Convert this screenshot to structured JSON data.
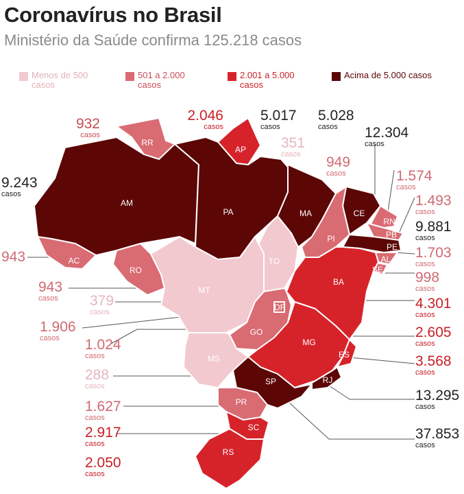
{
  "title": "Coronavírus no Brasil",
  "subtitle": "Ministério da Saúde confirma 125.218 casos",
  "colors": {
    "c1": "#f2c9cf",
    "c2": "#d96b72",
    "c3": "#d6232a",
    "c4": "#5c0606"
  },
  "legend": [
    {
      "label": "Menos de 500 casos",
      "level": "c1",
      "text": "#e2b1b7"
    },
    {
      "label": "501 a 2.000 casos",
      "level": "c2",
      "text": "#c84d56"
    },
    {
      "label": "2.001 a 5.000 casos",
      "level": "c3",
      "text": "#c81f26"
    },
    {
      "label": "Acima de 5.000 casos",
      "level": "c4",
      "text": "#5c0606"
    }
  ],
  "casos_word": "casos",
  "states": [
    {
      "uf": "AM",
      "cases": "9.243",
      "level": "c4"
    },
    {
      "uf": "RR",
      "cases": "932",
      "level": "c2"
    },
    {
      "uf": "AP",
      "cases": "2.046",
      "level": "c3"
    },
    {
      "uf": "PA",
      "cases": "5.017",
      "level": "c4"
    },
    {
      "uf": "MA",
      "cases": "5.028",
      "level": "c4"
    },
    {
      "uf": "CE",
      "cases": "12.304",
      "level": "c4"
    },
    {
      "uf": "TO",
      "cases": "351",
      "level": "c1"
    },
    {
      "uf": "PI",
      "cases": "949",
      "level": "c2"
    },
    {
      "uf": "RN",
      "cases": "1.574",
      "level": "c2"
    },
    {
      "uf": "PB",
      "cases": "1.493",
      "level": "c2"
    },
    {
      "uf": "PE",
      "cases": "9.881",
      "level": "c4"
    },
    {
      "uf": "AL",
      "cases": "1.703",
      "level": "c2"
    },
    {
      "uf": "SE",
      "cases": "998",
      "level": "c2"
    },
    {
      "uf": "BA",
      "cases": "4.301",
      "level": "c3"
    },
    {
      "uf": "AC",
      "cases": "943",
      "level": "c2"
    },
    {
      "uf": "RO",
      "cases": "943",
      "level": "c2"
    },
    {
      "uf": "MT",
      "cases": "379",
      "level": "c1"
    },
    {
      "uf": "DF",
      "cases": "1.906",
      "level": "c2"
    },
    {
      "uf": "GO",
      "cases": "1.024",
      "level": "c2"
    },
    {
      "uf": "MS",
      "cases": "288",
      "level": "c1"
    },
    {
      "uf": "MG",
      "cases": "2.605",
      "level": "c3"
    },
    {
      "uf": "ES",
      "cases": "3.568",
      "level": "c3"
    },
    {
      "uf": "RJ",
      "cases": "13.295",
      "level": "c4"
    },
    {
      "uf": "SP",
      "cases": "37.853",
      "level": "c4"
    },
    {
      "uf": "PR",
      "cases": "1.627",
      "level": "c2"
    },
    {
      "uf": "SC",
      "cases": "2.917",
      "level": "c3"
    },
    {
      "uf": "RS",
      "cases": "2.050",
      "level": "c3"
    }
  ]
}
